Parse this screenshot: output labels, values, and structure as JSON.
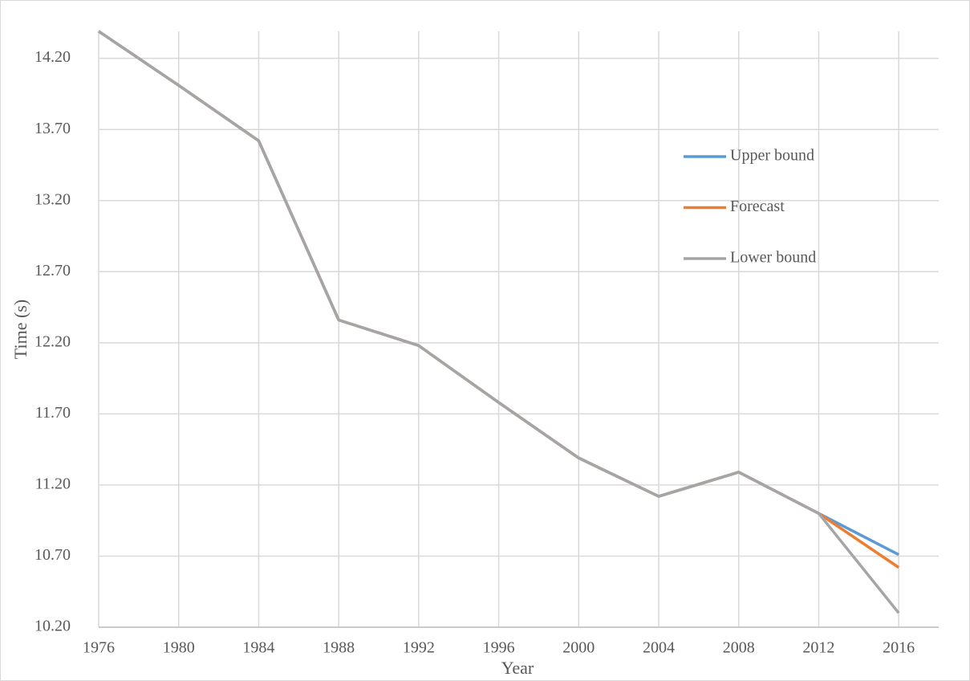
{
  "chart_data": {
    "type": "line",
    "x_label": "Year",
    "y_label": "Time (s)",
    "x": [
      1976,
      1980,
      1984,
      1988,
      1992,
      1996,
      2000,
      2004,
      2008,
      2012,
      2016
    ],
    "series": [
      {
        "name": "Upper bound",
        "color": "#5b9bd5",
        "values": [
          14.39,
          14.01,
          13.62,
          12.36,
          12.18,
          11.78,
          11.39,
          11.12,
          11.29,
          11.0,
          10.71
        ]
      },
      {
        "name": "Forecast",
        "color": "#ed7d31",
        "values": [
          14.39,
          14.01,
          13.62,
          12.36,
          12.18,
          11.78,
          11.39,
          11.12,
          11.29,
          11.0,
          10.62
        ]
      },
      {
        "name": "Lower bound",
        "color": "#a5a5a5",
        "values": [
          14.39,
          14.01,
          13.62,
          12.36,
          12.18,
          11.78,
          11.39,
          11.12,
          11.29,
          11.0,
          10.3
        ]
      }
    ],
    "xlim": [
      1976,
      2018
    ],
    "xticks": [
      1976,
      1980,
      1984,
      1988,
      1992,
      1996,
      2000,
      2004,
      2008,
      2012,
      2016
    ],
    "ylim": [
      10.2,
      14.39
    ],
    "yticks": [
      {
        "value": 10.2,
        "label": "10.20"
      },
      {
        "value": 10.7,
        "label": "10.70"
      },
      {
        "value": 11.2,
        "label": "11.20"
      },
      {
        "value": 11.7,
        "label": "11.70"
      },
      {
        "value": 12.2,
        "label": "12.20"
      },
      {
        "value": 12.7,
        "label": "12.70"
      },
      {
        "value": 13.2,
        "label": "13.20"
      },
      {
        "value": 13.7,
        "label": "13.70"
      },
      {
        "value": 14.2,
        "label": "14.20"
      }
    ],
    "grid": true
  }
}
